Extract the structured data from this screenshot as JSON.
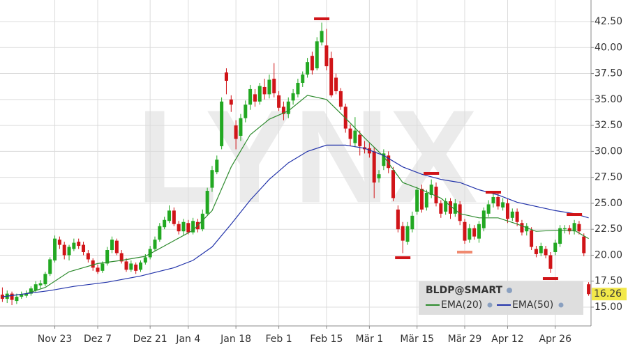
{
  "chart_data": {
    "type": "candlestick",
    "watermark": "LYNX",
    "categories": [
      null,
      null,
      null,
      null,
      null,
      null,
      null,
      null,
      null,
      null,
      null,
      "Nov 23",
      null,
      null,
      null,
      null,
      null,
      null,
      null,
      null,
      "Dez 7",
      null,
      null,
      null,
      null,
      null,
      null,
      null,
      null,
      null,
      null,
      "Dez 21",
      null,
      null,
      null,
      null,
      null,
      null,
      null,
      "Jan 4",
      null,
      null,
      null,
      null,
      null,
      null,
      null,
      null,
      null,
      "Jan 18",
      null,
      null,
      null,
      null,
      null,
      null,
      null,
      null,
      "Feb 1",
      null,
      null,
      null,
      null,
      null,
      null,
      null,
      null,
      null,
      "Feb 15",
      null,
      null,
      null,
      null,
      null,
      null,
      null,
      null,
      "Mär 1",
      null,
      null,
      null,
      null,
      null,
      null,
      null,
      null,
      null,
      "Mär 15",
      null,
      null,
      null,
      null,
      null,
      null,
      null,
      null,
      null,
      "Mär 29",
      null,
      null,
      null,
      null,
      null,
      null,
      null,
      null,
      "Apr 12",
      null,
      null,
      null,
      null,
      null,
      null,
      null,
      null,
      null,
      "Apr 26",
      null,
      null,
      null,
      null,
      null,
      null,
      null
    ],
    "ylim": [
      13.19,
      44.58
    ],
    "yticks": [
      {
        "value": 15,
        "label": "15.00"
      },
      {
        "value": 17.5,
        "label": "17.50"
      },
      {
        "value": 20,
        "label": "20.00"
      },
      {
        "value": 22.5,
        "label": "22.50"
      },
      {
        "value": 25,
        "label": "25.00"
      },
      {
        "value": 27.5,
        "label": "27.50"
      },
      {
        "value": 30,
        "label": "30.00"
      },
      {
        "value": 32.5,
        "label": "32.50"
      },
      {
        "value": 35,
        "label": "35.00"
      },
      {
        "value": 37.5,
        "label": "37.50"
      },
      {
        "value": 40,
        "label": "40.00"
      },
      {
        "value": 42.5,
        "label": "42.50"
      }
    ],
    "grid": true,
    "last_price": 16.26,
    "series": [
      {
        "name": "BLDP@SMART",
        "up_color": "#22a822",
        "down_color": "#d01418",
        "ohlc": [
          [
            16.2,
            16.9,
            15.5,
            15.8
          ],
          [
            15.8,
            16.6,
            15.4,
            16.3
          ],
          [
            16.3,
            16.5,
            15.2,
            15.7
          ],
          [
            15.6,
            16.3,
            15.3,
            16.0
          ],
          [
            16.0,
            16.5,
            15.8,
            16.2
          ],
          [
            16.1,
            16.6,
            15.9,
            16.3
          ],
          [
            16.3,
            17.0,
            16.1,
            16.8
          ],
          [
            16.6,
            17.5,
            16.4,
            17.2
          ],
          [
            17.1,
            17.6,
            16.8,
            17.3
          ],
          [
            17.2,
            18.4,
            17.0,
            18.2
          ],
          [
            18.2,
            19.8,
            18.0,
            19.6
          ],
          [
            19.5,
            21.9,
            19.3,
            21.6
          ],
          [
            21.5,
            21.8,
            20.6,
            21.0
          ],
          [
            21.0,
            21.3,
            19.6,
            20.0
          ],
          [
            20.0,
            21.0,
            19.5,
            20.8
          ],
          [
            20.6,
            21.6,
            20.4,
            21.2
          ],
          [
            21.3,
            21.6,
            20.6,
            20.9
          ],
          [
            21.0,
            21.3,
            20.0,
            20.3
          ],
          [
            20.2,
            20.5,
            19.3,
            19.6
          ],
          [
            19.5,
            19.7,
            18.5,
            18.8
          ],
          [
            18.8,
            19.1,
            18.2,
            18.4
          ],
          [
            18.5,
            19.4,
            18.3,
            19.2
          ],
          [
            19.2,
            20.8,
            19.0,
            20.5
          ],
          [
            20.5,
            21.8,
            20.2,
            21.5
          ],
          [
            21.4,
            21.6,
            20.0,
            20.2
          ],
          [
            20.2,
            20.5,
            19.2,
            19.4
          ],
          [
            19.4,
            19.7,
            18.4,
            18.6
          ],
          [
            18.6,
            19.5,
            18.4,
            19.2
          ],
          [
            19.1,
            19.3,
            18.2,
            18.5
          ],
          [
            18.6,
            19.5,
            18.4,
            19.3
          ],
          [
            19.3,
            20.1,
            19.1,
            19.8
          ],
          [
            19.8,
            20.9,
            19.6,
            20.6
          ],
          [
            20.6,
            21.8,
            20.4,
            21.5
          ],
          [
            21.5,
            23.1,
            21.3,
            22.8
          ],
          [
            22.7,
            23.7,
            22.5,
            23.4
          ],
          [
            23.3,
            24.8,
            23.1,
            24.3
          ],
          [
            24.3,
            24.6,
            22.8,
            23.0
          ],
          [
            23.0,
            23.3,
            22.0,
            22.3
          ],
          [
            22.3,
            23.5,
            21.9,
            23.2
          ],
          [
            23.1,
            23.4,
            22.0,
            22.2
          ],
          [
            22.2,
            23.6,
            22.0,
            23.3
          ],
          [
            23.2,
            23.5,
            22.2,
            22.5
          ],
          [
            22.5,
            24.4,
            22.3,
            24.0
          ],
          [
            24.0,
            26.5,
            23.8,
            26.2
          ],
          [
            26.5,
            28.6,
            26.1,
            28.2
          ],
          [
            28.0,
            29.6,
            27.8,
            29.2
          ],
          [
            30.5,
            35.2,
            30.2,
            34.8
          ],
          [
            37.6,
            38.0,
            35.5,
            36.8
          ],
          [
            35.0,
            35.4,
            33.8,
            34.5
          ],
          [
            32.5,
            33.0,
            30.2,
            31.2
          ],
          [
            31.5,
            33.6,
            31.0,
            33.2
          ],
          [
            33.2,
            34.9,
            32.8,
            34.5
          ],
          [
            34.5,
            36.4,
            34.0,
            36.0
          ],
          [
            35.5,
            36.0,
            34.3,
            34.8
          ],
          [
            34.8,
            36.6,
            34.5,
            36.3
          ],
          [
            36.2,
            37.0,
            35.0,
            35.5
          ],
          [
            35.5,
            37.4,
            35.1,
            36.9
          ],
          [
            37.0,
            38.5,
            35.2,
            35.6
          ],
          [
            35.4,
            35.8,
            33.9,
            34.2
          ],
          [
            34.3,
            34.8,
            33.0,
            33.6
          ],
          [
            33.6,
            35.2,
            33.2,
            34.8
          ],
          [
            34.9,
            36.0,
            34.5,
            35.6
          ],
          [
            35.5,
            37.0,
            35.2,
            36.6
          ],
          [
            36.6,
            37.7,
            36.2,
            37.4
          ],
          [
            37.4,
            39.0,
            37.1,
            38.6
          ],
          [
            39.2,
            39.6,
            37.4,
            37.8
          ],
          [
            38.0,
            41.0,
            37.8,
            40.6
          ],
          [
            40.5,
            42.4,
            40.2,
            41.6
          ],
          [
            40.2,
            41.8,
            37.8,
            38.2
          ],
          [
            39.0,
            39.6,
            35.2,
            35.4
          ],
          [
            37.1,
            37.5,
            35.5,
            35.8
          ],
          [
            35.8,
            36.1,
            34.0,
            34.3
          ],
          [
            34.3,
            34.6,
            31.8,
            32.2
          ],
          [
            32.2,
            32.6,
            30.5,
            31.2
          ],
          [
            30.8,
            33.3,
            30.4,
            32.0
          ],
          [
            31.6,
            32.0,
            29.6,
            30.5
          ],
          [
            30.4,
            31.0,
            29.8,
            30.2
          ],
          [
            30.3,
            30.8,
            29.4,
            29.8
          ],
          [
            30.0,
            30.4,
            25.5,
            27.0
          ],
          [
            27.4,
            28.2,
            27.0,
            27.8
          ],
          [
            28.6,
            30.2,
            28.2,
            29.8
          ],
          [
            29.6,
            30.0,
            27.9,
            28.4
          ],
          [
            28.2,
            28.5,
            25.2,
            25.5
          ],
          [
            24.4,
            24.8,
            22.2,
            22.5
          ],
          [
            22.8,
            23.2,
            20.2,
            21.4
          ],
          [
            21.3,
            23.2,
            21.0,
            22.8
          ],
          [
            22.5,
            24.2,
            22.2,
            23.8
          ],
          [
            24.2,
            26.6,
            23.9,
            26.3
          ],
          [
            26.4,
            26.8,
            24.1,
            24.4
          ],
          [
            24.6,
            26.3,
            24.3,
            26.0
          ],
          [
            25.8,
            27.3,
            25.5,
            26.8
          ],
          [
            26.6,
            27.0,
            24.7,
            25.0
          ],
          [
            25.0,
            25.3,
            23.6,
            24.0
          ],
          [
            24.2,
            25.5,
            23.9,
            25.2
          ],
          [
            25.2,
            25.5,
            23.5,
            24.0
          ],
          [
            24.0,
            25.4,
            23.7,
            25.0
          ],
          [
            24.9,
            25.2,
            22.9,
            23.3
          ],
          [
            23.2,
            23.5,
            21.1,
            21.4
          ],
          [
            21.5,
            23.0,
            21.2,
            22.6
          ],
          [
            22.6,
            22.9,
            21.5,
            21.8
          ],
          [
            21.6,
            23.3,
            21.2,
            23.0
          ],
          [
            22.6,
            24.6,
            22.3,
            24.3
          ],
          [
            24.0,
            25.3,
            23.7,
            24.9
          ],
          [
            25.0,
            26.0,
            24.6,
            25.6
          ],
          [
            25.6,
            26.0,
            24.4,
            24.7
          ],
          [
            24.6,
            25.5,
            24.3,
            25.1
          ],
          [
            25.0,
            25.4,
            23.1,
            23.5
          ],
          [
            23.6,
            24.5,
            23.3,
            24.2
          ],
          [
            24.2,
            24.5,
            22.8,
            23.2
          ],
          [
            23.1,
            23.4,
            21.9,
            22.2
          ],
          [
            22.3,
            23.1,
            21.9,
            22.8
          ],
          [
            22.4,
            22.7,
            20.5,
            20.8
          ],
          [
            20.6,
            20.9,
            19.8,
            20.1
          ],
          [
            20.2,
            21.2,
            19.9,
            20.9
          ],
          [
            20.6,
            20.9,
            19.7,
            20.0
          ],
          [
            20.0,
            20.3,
            18.3,
            18.7
          ],
          [
            20.3,
            21.5,
            20.0,
            21.2
          ],
          [
            21.1,
            22.9,
            20.8,
            22.6
          ],
          [
            22.5,
            22.9,
            22.1,
            22.6
          ],
          [
            22.6,
            22.9,
            22.0,
            22.3
          ],
          [
            22.3,
            23.4,
            22.0,
            23.1
          ],
          [
            23.0,
            23.3,
            22.0,
            22.3
          ],
          [
            21.8,
            22.1,
            19.9,
            20.2
          ],
          [
            17.2,
            17.4,
            16.1,
            16.26
          ]
        ]
      },
      {
        "name": "EMA(20)",
        "type": "line",
        "color": "#2e8b2e",
        "x": [
          0,
          5,
          9,
          14,
          20,
          25,
          30,
          36,
          40,
          44,
          48,
          52,
          56,
          60,
          64,
          68,
          72,
          76,
          80,
          84,
          88,
          92,
          96,
          100,
          104,
          108,
          112,
          116,
          120,
          123
        ],
        "values": [
          16.0,
          16.3,
          16.9,
          18.4,
          19.2,
          19.5,
          19.9,
          21.4,
          22.4,
          24.3,
          28.5,
          31.6,
          33.1,
          33.9,
          35.4,
          35.0,
          33.2,
          31.3,
          29.5,
          27.0,
          26.3,
          25.5,
          24.0,
          23.6,
          23.6,
          23.0,
          22.3,
          22.4,
          22.4,
          21.6
        ]
      },
      {
        "name": "EMA(50)",
        "type": "line",
        "color": "#2233aa",
        "x": [
          0,
          10,
          15,
          22,
          29,
          36,
          40,
          44,
          48,
          52,
          56,
          60,
          64,
          68,
          72,
          76,
          80,
          84,
          88,
          92,
          96,
          100,
          104,
          108,
          112,
          116,
          120,
          123
        ],
        "values": [
          16.0,
          16.6,
          17.0,
          17.4,
          18.0,
          18.8,
          19.5,
          20.8,
          23.0,
          25.3,
          27.3,
          28.9,
          30.0,
          30.6,
          30.6,
          30.3,
          29.6,
          28.5,
          27.8,
          27.3,
          27.0,
          26.3,
          25.8,
          25.1,
          24.7,
          24.3,
          24.0,
          23.6
        ]
      }
    ],
    "levels": [
      {
        "x": 67,
        "value": 42.77,
        "color": "#d01418"
      },
      {
        "x": 84,
        "value": 19.76,
        "color": "#d01418"
      },
      {
        "x": 90,
        "value": 27.88,
        "color": "#d01418"
      },
      {
        "x": 97,
        "value": 20.3,
        "color": "#f08a70"
      },
      {
        "x": 103,
        "value": 26.07,
        "color": "#d01418"
      },
      {
        "x": 115,
        "value": 17.75,
        "color": "#d01418"
      },
      {
        "x": 120,
        "value": 23.92,
        "color": "#d01418"
      }
    ]
  }
}
